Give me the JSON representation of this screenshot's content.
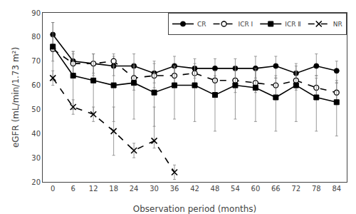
{
  "chart_data": {
    "type": "line",
    "xlabel": "Observation period (months)",
    "ylabel": "eGFR (mL/min/1.73 m²)",
    "x": [
      0,
      6,
      12,
      18,
      24,
      30,
      36,
      42,
      48,
      54,
      60,
      66,
      72,
      78,
      84
    ],
    "xlim": [
      -3,
      87
    ],
    "xticks": [
      0,
      6,
      12,
      18,
      24,
      30,
      36,
      42,
      48,
      54,
      60,
      66,
      72,
      78,
      84
    ],
    "ylim": [
      20,
      90
    ],
    "yticks": [
      20,
      30,
      40,
      50,
      60,
      70,
      80,
      90
    ],
    "grid": false,
    "legend": "upper right",
    "series": [
      {
        "name": "CR",
        "color": "black",
        "marker": "circle",
        "line_style": "solid",
        "values": [
          81,
          70,
          69,
          68,
          68,
          65,
          68,
          67,
          67,
          67,
          67,
          68,
          65,
          68,
          66
        ],
        "error_minus": [
          5,
          5,
          4,
          4,
          4,
          4,
          5,
          4,
          4,
          4,
          4,
          5,
          4,
          4,
          5
        ],
        "error_plus": [
          5,
          4,
          4,
          4,
          5,
          5,
          4,
          4,
          4,
          4,
          5,
          4,
          4,
          5,
          4
        ]
      },
      {
        "name": "ICR Ⅰ",
        "color": "black",
        "marker": "circle-open",
        "line_style": "dashed",
        "values": [
          75,
          69,
          69,
          70,
          63,
          64,
          64,
          65,
          62,
          62,
          61,
          60,
          62,
          59,
          57
        ],
        "error_minus": [
          5,
          5,
          5,
          3,
          5,
          5,
          4,
          4,
          5,
          5,
          4,
          5,
          4,
          4,
          5
        ],
        "error_plus": [
          5,
          4,
          4,
          3,
          5,
          5,
          4,
          4,
          4,
          4,
          5,
          4,
          4,
          5,
          5
        ]
      },
      {
        "name": "ICR Ⅱ",
        "color": "black",
        "marker": "square",
        "line_style": "solid",
        "values": [
          76,
          64,
          62,
          60,
          61,
          57,
          60,
          60,
          56,
          60,
          59,
          55,
          60,
          55,
          53
        ],
        "error_minus": [
          14,
          14,
          14,
          15,
          15,
          14,
          14,
          15,
          15,
          14,
          14,
          14,
          15,
          14,
          14
        ],
        "error_plus": [
          10,
          10,
          8,
          8,
          8,
          8,
          8,
          8,
          8,
          8,
          8,
          8,
          8,
          8,
          8
        ]
      },
      {
        "name": "NR",
        "color": "black",
        "marker": "x",
        "line_style": "dashed",
        "values": [
          63,
          51,
          48,
          41,
          33,
          37,
          24,
          null,
          null,
          null,
          null,
          null,
          null,
          null,
          null
        ],
        "error_minus": [
          3,
          3,
          3,
          10,
          3,
          3,
          3,
          null,
          null,
          null,
          null,
          null,
          null,
          null,
          null
        ],
        "error_plus": [
          3,
          3,
          3,
          10,
          3,
          14,
          3,
          null,
          null,
          null,
          null,
          null,
          null,
          null,
          null
        ]
      }
    ]
  }
}
